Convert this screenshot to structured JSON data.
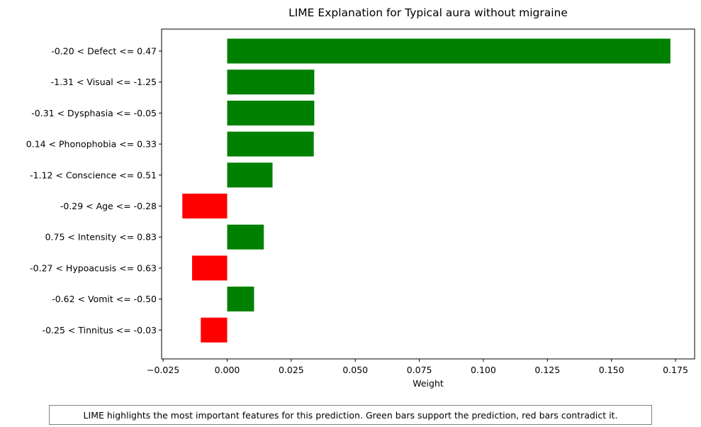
{
  "chart_data": {
    "type": "bar",
    "orientation": "horizontal",
    "title": "LIME Explanation for Typical aura without migraine",
    "xlabel": "Weight",
    "ylabel": "",
    "xlim": [
      -0.0255,
      0.18
    ],
    "xticks": [
      -0.025,
      0.0,
      0.025,
      0.05,
      0.075,
      0.1,
      0.125,
      0.15,
      0.175
    ],
    "xtick_labels": [
      "−0.025",
      "0.000",
      "0.025",
      "0.050",
      "0.075",
      "0.100",
      "0.125",
      "0.150",
      "0.175"
    ],
    "grid": false,
    "categories": [
      "-0.20 < Defect <= 0.47",
      "-1.31 < Visual <= -1.25",
      "-0.31 < Dysphasia <= -0.05",
      "0.14 < Phonophobia <= 0.33",
      "-1.12 < Conscience <= 0.51",
      "-0.29 < Age <= -0.28",
      "0.75 < Intensity <= 0.83",
      "-0.27 < Hypoacusis <= 0.63",
      "-0.62 < Vomit <= -0.50",
      "-0.25 < Tinnitus <= -0.03"
    ],
    "values": [
      0.173,
      0.034,
      0.034,
      0.0338,
      0.0177,
      -0.0175,
      0.0143,
      -0.0137,
      0.0105,
      -0.0103
    ],
    "positive_color": "#008000",
    "negative_color": "#ff0000"
  },
  "caption": "LIME highlights the most important features for this prediction. Green bars support the prediction, red bars contradict it."
}
